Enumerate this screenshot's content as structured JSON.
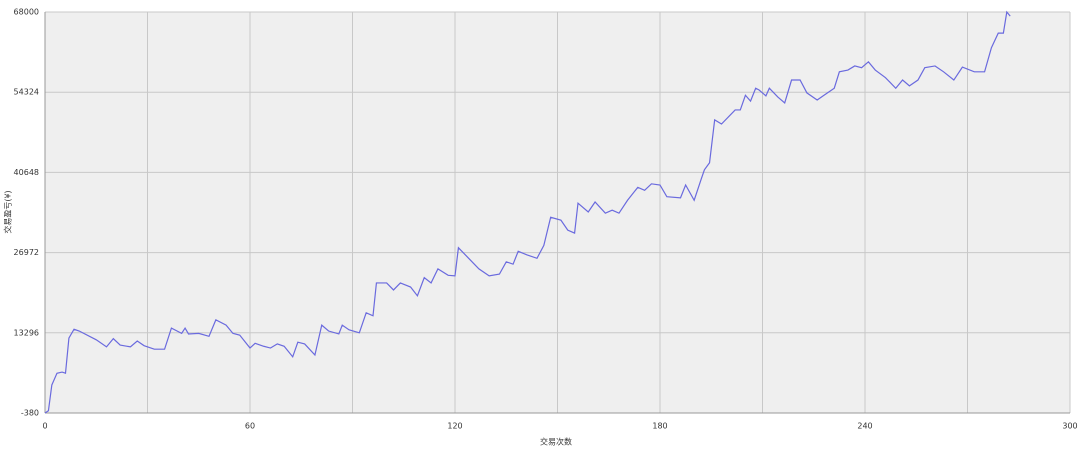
{
  "chart_data": {
    "type": "line",
    "xlabel": "交易次数",
    "ylabel": "交易盈亏(¥)",
    "x": [
      0,
      1,
      2,
      3.5,
      5,
      6,
      7,
      8.5,
      10,
      15,
      18,
      20,
      22,
      25,
      27,
      29,
      32,
      35,
      37,
      40,
      41,
      42,
      45,
      48,
      50,
      53,
      55,
      57,
      60,
      61.5,
      64,
      66,
      68,
      70,
      72.5,
      74,
      76,
      79,
      81,
      83,
      86,
      87,
      89,
      92,
      94,
      96,
      97,
      100,
      102,
      104,
      107,
      109,
      111,
      113,
      115,
      118,
      120,
      121,
      124,
      127,
      130,
      133,
      135,
      137,
      138.5,
      141,
      144,
      146,
      148,
      151,
      153,
      155,
      156,
      159,
      161,
      164,
      166,
      168,
      170.5,
      173.5,
      175.5,
      177.5,
      180,
      182,
      186,
      187.5,
      190,
      192,
      193,
      194.5,
      196,
      198,
      202,
      203.5,
      205,
      206.5,
      208,
      209,
      211,
      212,
      214.5,
      216.5,
      218.5,
      221,
      223,
      226,
      228,
      231,
      232.5,
      235,
      237,
      239,
      241,
      243,
      246,
      249,
      251,
      253,
      255.5,
      257.5,
      260.5,
      263,
      266,
      268.5,
      272,
      275,
      277,
      279,
      280.5,
      281.5,
      282.5
    ],
    "series": [
      {
        "color": "#6a6ade",
        "values": [
          -380,
          0,
          4400,
          6400,
          6600,
          6400,
          12400,
          13900,
          13600,
          12100,
          10900,
          12300,
          11200,
          10900,
          11900,
          11100,
          10500,
          10500,
          14100,
          13200,
          14100,
          13100,
          13200,
          12700,
          15500,
          14600,
          13200,
          12900,
          10700,
          11500,
          11000,
          10700,
          11400,
          11000,
          9200,
          11700,
          11400,
          9500,
          14600,
          13600,
          13100,
          14600,
          13800,
          13300,
          16700,
          16200,
          21800,
          21800,
          20600,
          21800,
          21100,
          19600,
          22700,
          21800,
          24200,
          23100,
          23000,
          27800,
          26000,
          24200,
          23000,
          23300,
          25400,
          25000,
          27200,
          26600,
          26000,
          28200,
          33000,
          32500,
          30800,
          30300,
          35400,
          33900,
          35600,
          33700,
          34200,
          33700,
          35900,
          38100,
          37600,
          38700,
          38500,
          36500,
          36300,
          38500,
          35900,
          39400,
          41100,
          42300,
          49600,
          48900,
          51300,
          51300,
          53800,
          52800,
          55000,
          54700,
          53700,
          55000,
          53500,
          52500,
          56400,
          56400,
          54200,
          53000,
          53800,
          55000,
          57800,
          58100,
          58800,
          58500,
          59500,
          58100,
          56800,
          55000,
          56400,
          55400,
          56400,
          58500,
          58800,
          57800,
          56400,
          58600,
          57800,
          57800,
          61900,
          64400,
          64400,
          68000,
          67300
        ]
      }
    ],
    "xlim": [
      0,
      300
    ],
    "xticks": [
      0,
      60,
      120,
      180,
      240,
      300
    ],
    "xminorticks": [
      30,
      90,
      150,
      210,
      270
    ],
    "ylim": [
      -380,
      68000
    ],
    "yticks": [
      -380,
      13296,
      26972,
      40648,
      54324,
      68000
    ],
    "grid": true
  }
}
